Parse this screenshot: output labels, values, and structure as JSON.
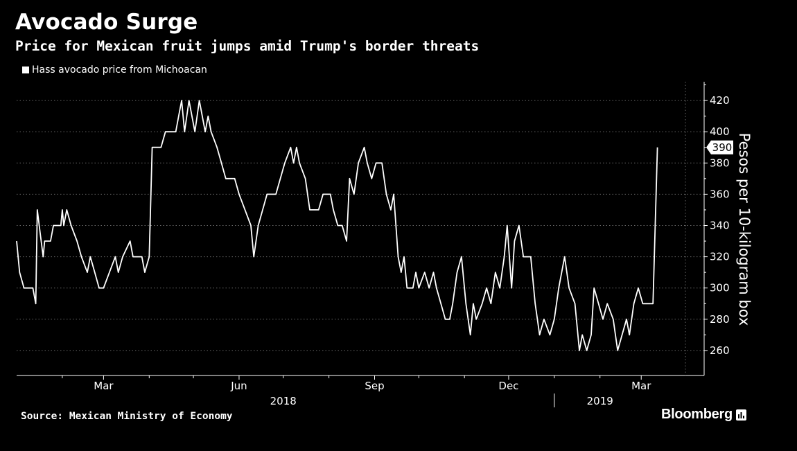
{
  "header": {
    "title": "Avocado Surge",
    "subtitle": "Price for Mexican fruit jumps amid Trump's border threats"
  },
  "footer": {
    "source": "Source: Mexican Ministry of Economy",
    "brand": "Bloomberg"
  },
  "colors": {
    "background": "#000000",
    "line": "#ffffff",
    "grid": "#666666",
    "label_box": "#ffffff"
  },
  "icons": {
    "brand_mark": "bloomberg-chart-icon"
  },
  "chart_data": {
    "type": "line",
    "title": "Avocado Surge",
    "subtitle": "Price for Mexican fruit jumps amid Trump's border threats",
    "ylabel": "Pesos per 10-kilogram box",
    "xlabel": "",
    "ylim": [
      244,
      432
    ],
    "yticks": [
      260,
      280,
      300,
      320,
      340,
      360,
      380,
      400,
      420
    ],
    "grid": true,
    "legend_position": "top-left",
    "x_tick_labels": [
      "Mar",
      "Jun",
      "Sep",
      "Dec",
      "Mar"
    ],
    "x_tick_dates": [
      "2018-03-01",
      "2018-06-01",
      "2018-09-01",
      "2018-12-01",
      "2019-03-01"
    ],
    "x_group_labels": [
      {
        "label": "2018",
        "date": "2018-07-01"
      },
      {
        "label": "2019",
        "date": "2019-02-01"
      }
    ],
    "xlim": [
      "2018-01-01",
      "2019-03-31"
    ],
    "last_value_label": "390",
    "series": [
      {
        "name": "Hass avocado price from Michoacan",
        "points": [
          [
            "2018-01-01",
            330
          ],
          [
            "2018-01-03",
            310
          ],
          [
            "2018-01-06",
            300
          ],
          [
            "2018-01-12",
            300
          ],
          [
            "2018-01-14",
            290
          ],
          [
            "2018-01-15",
            350
          ],
          [
            "2018-01-17",
            335
          ],
          [
            "2018-01-19",
            320
          ],
          [
            "2018-01-20",
            330
          ],
          [
            "2018-01-24",
            330
          ],
          [
            "2018-01-26",
            340
          ],
          [
            "2018-01-31",
            340
          ],
          [
            "2018-02-01",
            350
          ],
          [
            "2018-02-02",
            340
          ],
          [
            "2018-02-04",
            350
          ],
          [
            "2018-02-07",
            340
          ],
          [
            "2018-02-11",
            330
          ],
          [
            "2018-02-14",
            320
          ],
          [
            "2018-02-18",
            310
          ],
          [
            "2018-02-20",
            320
          ],
          [
            "2018-02-23",
            310
          ],
          [
            "2018-02-26",
            300
          ],
          [
            "2018-03-01",
            300
          ],
          [
            "2018-03-05",
            310
          ],
          [
            "2018-03-09",
            320
          ],
          [
            "2018-03-11",
            310
          ],
          [
            "2018-03-14",
            320
          ],
          [
            "2018-03-19",
            330
          ],
          [
            "2018-03-21",
            320
          ],
          [
            "2018-03-27",
            320
          ],
          [
            "2018-03-29",
            310
          ],
          [
            "2018-04-01",
            320
          ],
          [
            "2018-04-03",
            390
          ],
          [
            "2018-04-09",
            390
          ],
          [
            "2018-04-12",
            400
          ],
          [
            "2018-04-19",
            400
          ],
          [
            "2018-04-21",
            410
          ],
          [
            "2018-04-23",
            420
          ],
          [
            "2018-04-25",
            400
          ],
          [
            "2018-04-28",
            420
          ],
          [
            "2018-05-02",
            400
          ],
          [
            "2018-05-05",
            420
          ],
          [
            "2018-05-09",
            400
          ],
          [
            "2018-05-11",
            410
          ],
          [
            "2018-05-13",
            400
          ],
          [
            "2018-05-17",
            390
          ],
          [
            "2018-05-20",
            380
          ],
          [
            "2018-05-23",
            370
          ],
          [
            "2018-05-29",
            370
          ],
          [
            "2018-06-01",
            360
          ],
          [
            "2018-06-05",
            350
          ],
          [
            "2018-06-09",
            340
          ],
          [
            "2018-06-11",
            320
          ],
          [
            "2018-06-14",
            340
          ],
          [
            "2018-06-17",
            350
          ],
          [
            "2018-06-20",
            360
          ],
          [
            "2018-06-26",
            360
          ],
          [
            "2018-06-29",
            370
          ],
          [
            "2018-07-02",
            380
          ],
          [
            "2018-07-06",
            390
          ],
          [
            "2018-07-08",
            380
          ],
          [
            "2018-07-10",
            390
          ],
          [
            "2018-07-12",
            380
          ],
          [
            "2018-07-16",
            370
          ],
          [
            "2018-07-19",
            350
          ],
          [
            "2018-07-25",
            350
          ],
          [
            "2018-07-28",
            360
          ],
          [
            "2018-08-02",
            360
          ],
          [
            "2018-08-04",
            350
          ],
          [
            "2018-08-07",
            340
          ],
          [
            "2018-08-10",
            340
          ],
          [
            "2018-08-13",
            330
          ],
          [
            "2018-08-15",
            370
          ],
          [
            "2018-08-18",
            360
          ],
          [
            "2018-08-21",
            380
          ],
          [
            "2018-08-25",
            390
          ],
          [
            "2018-08-27",
            380
          ],
          [
            "2018-08-30",
            370
          ],
          [
            "2018-09-02",
            380
          ],
          [
            "2018-09-06",
            380
          ],
          [
            "2018-09-09",
            360
          ],
          [
            "2018-09-12",
            350
          ],
          [
            "2018-09-14",
            360
          ],
          [
            "2018-09-17",
            320
          ],
          [
            "2018-09-19",
            310
          ],
          [
            "2018-09-21",
            320
          ],
          [
            "2018-09-23",
            300
          ],
          [
            "2018-09-27",
            300
          ],
          [
            "2018-09-29",
            310
          ],
          [
            "2018-10-01",
            300
          ],
          [
            "2018-10-05",
            310
          ],
          [
            "2018-10-08",
            300
          ],
          [
            "2018-10-11",
            310
          ],
          [
            "2018-10-13",
            300
          ],
          [
            "2018-10-16",
            290
          ],
          [
            "2018-10-19",
            280
          ],
          [
            "2018-10-22",
            280
          ],
          [
            "2018-10-24",
            290
          ],
          [
            "2018-10-27",
            310
          ],
          [
            "2018-10-30",
            320
          ],
          [
            "2018-11-02",
            290
          ],
          [
            "2018-11-05",
            270
          ],
          [
            "2018-11-07",
            290
          ],
          [
            "2018-11-09",
            280
          ],
          [
            "2018-11-13",
            290
          ],
          [
            "2018-11-16",
            300
          ],
          [
            "2018-11-19",
            290
          ],
          [
            "2018-11-22",
            310
          ],
          [
            "2018-11-25",
            300
          ],
          [
            "2018-11-28",
            320
          ],
          [
            "2018-11-30",
            340
          ],
          [
            "2018-12-03",
            300
          ],
          [
            "2018-12-05",
            330
          ],
          [
            "2018-12-08",
            340
          ],
          [
            "2018-12-11",
            320
          ],
          [
            "2018-12-16",
            320
          ],
          [
            "2018-12-19",
            290
          ],
          [
            "2018-12-22",
            270
          ],
          [
            "2018-12-25",
            280
          ],
          [
            "2018-12-29",
            270
          ],
          [
            "2019-01-01",
            280
          ],
          [
            "2019-01-04",
            300
          ],
          [
            "2019-01-08",
            320
          ],
          [
            "2019-01-11",
            300
          ],
          [
            "2019-01-15",
            290
          ],
          [
            "2019-01-18",
            260
          ],
          [
            "2019-01-20",
            270
          ],
          [
            "2019-01-23",
            260
          ],
          [
            "2019-01-26",
            270
          ],
          [
            "2019-01-28",
            300
          ],
          [
            "2019-01-31",
            290
          ],
          [
            "2019-02-03",
            280
          ],
          [
            "2019-02-06",
            290
          ],
          [
            "2019-02-10",
            280
          ],
          [
            "2019-02-13",
            260
          ],
          [
            "2019-02-16",
            270
          ],
          [
            "2019-02-19",
            280
          ],
          [
            "2019-02-21",
            270
          ],
          [
            "2019-02-24",
            290
          ],
          [
            "2019-02-27",
            300
          ],
          [
            "2019-03-02",
            290
          ],
          [
            "2019-03-06",
            290
          ],
          [
            "2019-03-09",
            290
          ],
          [
            "2019-03-12",
            390
          ]
        ]
      }
    ]
  }
}
